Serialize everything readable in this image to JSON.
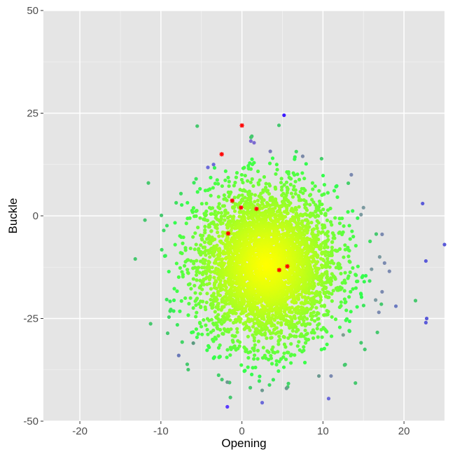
{
  "chart_data": {
    "type": "scatter",
    "title": "",
    "xlabel": "Opening",
    "ylabel": "Buckle",
    "xlim": [
      -24.5,
      25
    ],
    "ylim": [
      -50,
      50
    ],
    "x_ticks": [
      -20,
      -10,
      0,
      10,
      20
    ],
    "y_ticks": [
      50,
      25,
      0,
      -25,
      -50
    ],
    "x_tick_labels": [
      "-20",
      "-10",
      "0",
      "10",
      "20"
    ],
    "y_tick_labels": [
      "50",
      "25",
      "0",
      "-25",
      "-50"
    ],
    "grid": true,
    "legend": "none",
    "colors": {
      "panel_background": "#e5e5e5",
      "grid_major": "#ffffff",
      "density_high": "#ffff00",
      "density_mid": "#33ff4d",
      "outlier_low": "#6b7ab0",
      "outlier_extreme": "#3b1aff",
      "marker": "#ff0000"
    },
    "density_cloud": {
      "description_center": [
        3,
        -12
      ],
      "x_sd": 4.3,
      "y_sd": 9.5,
      "n_points": 4000
    },
    "outlier_points": [
      {
        "x": 5.2,
        "y": 24.5,
        "color": "#3b1aff"
      },
      {
        "x": 1.5,
        "y": 17.8,
        "color": "#7b6ad0"
      },
      {
        "x": 1.1,
        "y": 18.2,
        "color": "#7b6ad0"
      },
      {
        "x": 3.5,
        "y": 15.7,
        "color": "#7b7ab8"
      },
      {
        "x": 7.5,
        "y": 14.5,
        "color": "#7b8aa8"
      },
      {
        "x": -4.2,
        "y": 11.8,
        "color": "#6b6ad8"
      },
      {
        "x": -3.5,
        "y": 12.5,
        "color": "#6b6ad8"
      },
      {
        "x": 13.5,
        "y": 10.0,
        "color": "#7b8ab0"
      },
      {
        "x": 15.0,
        "y": 2.0,
        "color": "#7b9aa0"
      },
      {
        "x": 14.7,
        "y": 0.3,
        "color": "#7b9aa0"
      },
      {
        "x": 22.3,
        "y": 3.0,
        "color": "#5a5ad8"
      },
      {
        "x": 25.0,
        "y": -7.0,
        "color": "#5a5ad8"
      },
      {
        "x": 17.3,
        "y": -4.5,
        "color": "#7b8ab0"
      },
      {
        "x": 17.0,
        "y": -10.0,
        "color": "#7b9aa0"
      },
      {
        "x": 17.6,
        "y": -11.5,
        "color": "#7b8ab0"
      },
      {
        "x": 18.2,
        "y": -13.5,
        "color": "#7b8ab0"
      },
      {
        "x": 16.0,
        "y": -13.0,
        "color": "#7b9aa0"
      },
      {
        "x": 22.7,
        "y": -11.0,
        "color": "#5a5ad8"
      },
      {
        "x": 17.3,
        "y": -18.5,
        "color": "#7b8ab0"
      },
      {
        "x": 16.5,
        "y": -20.5,
        "color": "#7b9aa0"
      },
      {
        "x": 19.0,
        "y": -22.0,
        "color": "#6b7ac0"
      },
      {
        "x": 16.9,
        "y": -23.5,
        "color": "#7b8ab0"
      },
      {
        "x": 22.8,
        "y": -25.0,
        "color": "#5a5ad8"
      },
      {
        "x": 22.7,
        "y": -26.0,
        "color": "#5a5ad8"
      },
      {
        "x": 12.5,
        "y": -29.0,
        "color": "#7ba090"
      },
      {
        "x": -7.8,
        "y": -34.0,
        "color": "#6b7ab8"
      },
      {
        "x": -6.0,
        "y": -31.0,
        "color": "#5a9a80"
      },
      {
        "x": -1.8,
        "y": -40.5,
        "color": "#6b9a90"
      },
      {
        "x": 2.5,
        "y": -42.5,
        "color": "#6b9a90"
      },
      {
        "x": 5.5,
        "y": -42.0,
        "color": "#6b9a90"
      },
      {
        "x": 9.5,
        "y": -39.0,
        "color": "#6b9a90"
      },
      {
        "x": 11.0,
        "y": -39.0,
        "color": "#7b8ab0"
      },
      {
        "x": 10.7,
        "y": -44.5,
        "color": "#6b6ad8"
      },
      {
        "x": 2.5,
        "y": -45.5,
        "color": "#6b6ad8"
      },
      {
        "x": -1.8,
        "y": -46.5,
        "color": "#5a3aff"
      }
    ],
    "marker_points": [
      {
        "x": 0.0,
        "y": 22.0
      },
      {
        "x": -2.5,
        "y": 15.0
      },
      {
        "x": -1.2,
        "y": 3.7
      },
      {
        "x": -0.1,
        "y": 2.0
      },
      {
        "x": 1.8,
        "y": 1.7
      },
      {
        "x": -1.7,
        "y": -4.3
      },
      {
        "x": 4.6,
        "y": -13.2
      },
      {
        "x": 5.6,
        "y": -12.3
      }
    ]
  }
}
